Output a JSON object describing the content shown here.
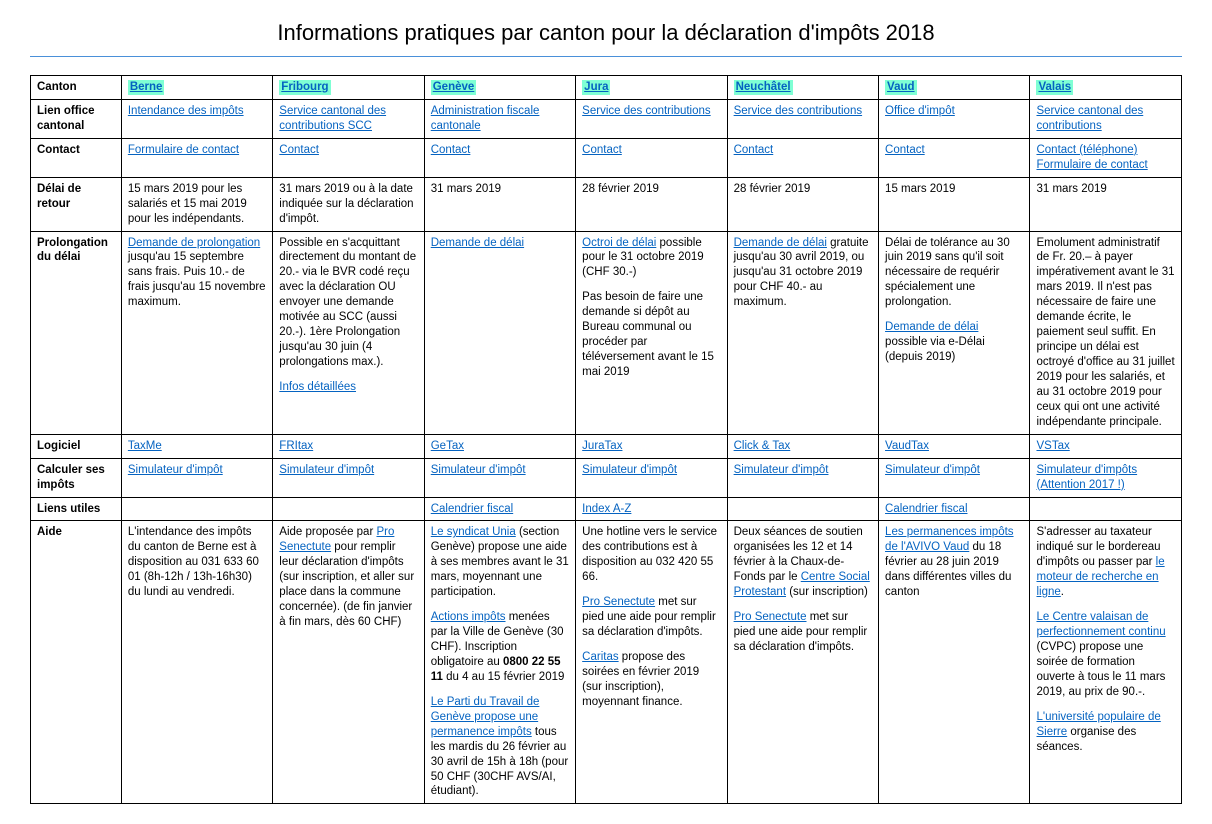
{
  "title": "Informations pratiques par canton pour la déclaration d'impôts 2018",
  "headers": {
    "canton": "Canton",
    "row_labels": [
      "Lien office cantonal",
      "Contact",
      "Délai de retour",
      "Prolongation du délai",
      "Logiciel",
      "Calculer ses impôts",
      "Liens utiles",
      "Aide"
    ]
  },
  "cantons": [
    "Berne",
    "Fribourg",
    "Genève",
    "Jura",
    "Neuchâtel",
    "Vaud",
    "Valais"
  ],
  "office": {
    "berne": "Intendance des impôts",
    "fribourg": "Service cantonal des contributions SCC",
    "geneve": "Administration fiscale cantonale",
    "jura": "Service des contributions",
    "neuchatel": "Service des contributions",
    "vaud": "Office d'impôt",
    "valais": "Service cantonal des contributions"
  },
  "contact": {
    "berne": "Formulaire de contact",
    "fribourg": "Contact",
    "geneve": "Contact",
    "jura": "Contact",
    "neuchatel": "Contact",
    "vaud": "Contact",
    "valais1": "Contact (téléphone)",
    "valais2": "Formulaire de contact"
  },
  "delai": {
    "berne": "15 mars 2019 pour les salariés et 15 mai 2019 pour les indépendants.",
    "fribourg": "31 mars 2019 ou à la date indiquée sur la déclaration d'impôt.",
    "geneve": "31 mars 2019",
    "jura": "28 février 2019",
    "neuchatel": "28 février 2019",
    "vaud": "15 mars 2019",
    "valais": "31 mars 2019"
  },
  "prolong": {
    "berne_link": "Demande de prolongation",
    "berne_txt": " jusqu'au 15 septembre sans frais. Puis 10.- de frais jusqu'au 15 novembre maximum.",
    "fribourg_txt": "Possible en s'acquittant directement du montant de 20.- via le BVR codé reçu avec la déclaration OU envoyer une demande motivée au SCC (aussi 20.-). 1ère Prolongation jusqu'au 30 juin (4 prolongations max.).",
    "fribourg_link": "Infos détaillées",
    "geneve_link": "Demande de délai",
    "jura_link": "Octroi de délai",
    "jura_txt1": " possible pour le 31 octobre 2019 (CHF 30.-)",
    "jura_txt2": "Pas besoin de faire une demande si dépôt au Bureau communal ou procéder par téléversement avant le 15 mai 2019",
    "neuchatel_link": "Demande de délai",
    "neuchatel_txt": " gratuite jusqu'au 30 avril 2019, ou jusqu'au 31 octobre 2019 pour CHF 40.- au maximum.",
    "vaud_txt1": "Délai de tolérance au 30 juin 2019 sans qu'il soit nécessaire de requérir spécialement une prolongation.",
    "vaud_link": "Demande de délai",
    "vaud_txt2": " possible via e-Délai (depuis 2019)",
    "valais_txt": "Emolument administratif de Fr. 20.– à payer impérativement avant le 31 mars 2019. Il n'est pas nécessaire de faire une demande écrite, le paiement seul suffit. En principe un délai est octroyé d'office au 31 juillet 2019 pour les salariés, et au 31 octobre 2019 pour ceux qui ont une activité indépendante principale."
  },
  "logiciel": {
    "berne": "TaxMe",
    "fribourg": "FRItax",
    "geneve": "GeTax",
    "jura": "JuraTax",
    "neuchatel": "Click & Tax",
    "vaud": "VaudTax",
    "valais": "VSTax"
  },
  "calculer": {
    "generic": "Simulateur d'impôt",
    "valais": "Simulateur d'impôts (Attention 2017 !)"
  },
  "liens": {
    "geneve": "Calendrier fiscal",
    "jura": "Index A-Z",
    "vaud": "Calendrier fiscal"
  },
  "aide": {
    "berne": "L'intendance des impôts du canton de Berne est à disposition au 031 633 60 01 (8h-12h / 13h-16h30) du lundi au vendredi.",
    "fribourg_pre": "Aide proposée par ",
    "fribourg_link": "Pro Senectute",
    "fribourg_post": " pour remplir leur déclaration d'impôts (sur inscription, et aller sur place dans la commune concernée). (de fin janvier à fin mars, dès 60 CHF)",
    "geneve_link1": "Le syndicat Unia",
    "geneve_txt1": " (section Genève) propose une aide à ses membres avant le 31 mars, moyennant une participation.",
    "geneve_link2": "Actions impôts",
    "geneve_txt2_a": " menées par la Ville de Genève (30 CHF). Inscription obligatoire au ",
    "geneve_bold": "0800 22 55 11",
    "geneve_txt2_b": " du 4 au 15 février 2019",
    "geneve_link3": "Le Parti du Travail de Genève propose une permanence impôts",
    "geneve_txt3": " tous les mardis du 26 février au 30 avril de 15h à 18h (pour 50 CHF (30CHF AVS/AI, étudiant).",
    "jura_txt1": "Une hotline vers le service des contributions est à disposition au 032 420 55 66.",
    "jura_link1": "Pro Senectute",
    "jura_txt2": " met sur pied une aide pour remplir sa déclaration d'impôts.",
    "jura_link2": "Caritas",
    "jura_txt3": " propose des soirées en février 2019 (sur inscription), moyennant finance.",
    "neuchatel_txt1": "Deux séances de soutien organisées les 12 et 14 février à la Chaux-de-Fonds par le ",
    "neuchatel_link1": "Centre Social Protestant",
    "neuchatel_txt1b": " (sur inscription)",
    "neuchatel_link2": "Pro Senectute",
    "neuchatel_txt2": " met sur pied une aide pour remplir sa déclaration d'impôts.",
    "vaud_link": "Les permanences impôts de l'AVIVO Vaud",
    "vaud_txt": " du 18 février au 28 juin 2019 dans différentes villes du canton",
    "valais_txt1": "S'adresser au taxateur indiqué sur le bordereau d'impôts ou passer par ",
    "valais_link1": "le moteur de recherche en ligne",
    "valais_dot": ".",
    "valais_link2": "Le Centre valaisan de perfectionnement continu",
    "valais_txt2": " (CVPC) propose une soirée de formation ouverte à tous le 11 mars 2019, au prix de 90.-.",
    "valais_link3": "L'université populaire de Sierre",
    "valais_txt3": " organise des séances."
  }
}
